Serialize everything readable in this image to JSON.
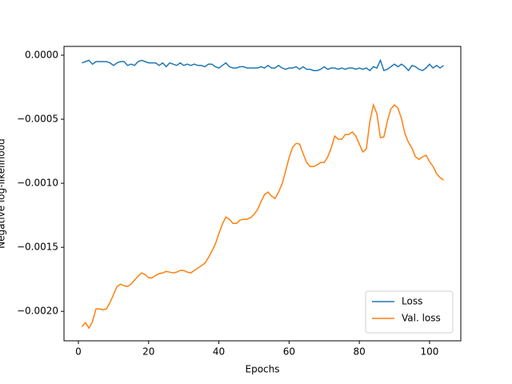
{
  "chart_data": {
    "type": "line",
    "x_label": "Epochs",
    "y_label": "Negative log-likelihood",
    "x": [
      1,
      2,
      3,
      4,
      5,
      6,
      7,
      8,
      9,
      10,
      11,
      12,
      13,
      14,
      15,
      16,
      17,
      18,
      19,
      20,
      21,
      22,
      23,
      24,
      25,
      26,
      27,
      28,
      29,
      30,
      31,
      32,
      33,
      34,
      35,
      36,
      37,
      38,
      39,
      40,
      41,
      42,
      43,
      44,
      45,
      46,
      47,
      48,
      49,
      50,
      51,
      52,
      53,
      54,
      55,
      56,
      57,
      58,
      59,
      60,
      61,
      62,
      63,
      64,
      65,
      66,
      67,
      68,
      69,
      70,
      71,
      72,
      73,
      74,
      75,
      76,
      77,
      78,
      79,
      80,
      81,
      82,
      83,
      84,
      85,
      86,
      87,
      88,
      89,
      90,
      91,
      92,
      93,
      94,
      95,
      96,
      97,
      98,
      99,
      100,
      101,
      102,
      103,
      104
    ],
    "series": [
      {
        "name": "Loss",
        "color": "#1f77b4",
        "values": [
          -6e-05,
          -5e-05,
          -4e-05,
          -7e-05,
          -5e-05,
          -5e-05,
          -5e-05,
          -5e-05,
          -6e-05,
          -8e-05,
          -6e-05,
          -5e-05,
          -5e-05,
          -8e-05,
          -7e-05,
          -8e-05,
          -5e-05,
          -4e-05,
          -5e-05,
          -6e-05,
          -6e-05,
          -6e-05,
          -8e-05,
          -6e-05,
          -9e-05,
          -6e-05,
          -7e-05,
          -8e-05,
          -6e-05,
          -8e-05,
          -7e-05,
          -8e-05,
          -7e-05,
          -8e-05,
          -8e-05,
          -9e-05,
          -7e-05,
          -7e-05,
          -9e-05,
          -0.0001,
          -8e-05,
          -6e-05,
          -9e-05,
          -0.0001,
          -0.0001,
          -9e-05,
          -9e-05,
          -0.0001,
          -0.0001,
          -0.0001,
          -0.0001,
          -9e-05,
          -0.0001,
          -8e-05,
          -0.0001,
          -0.0001,
          -8e-05,
          -0.0001,
          -0.00011,
          -0.0001,
          -0.0001,
          -9e-05,
          -0.00011,
          -9e-05,
          -0.00011,
          -0.00011,
          -0.00012,
          -0.00012,
          -0.00011,
          -9e-05,
          -0.00011,
          -0.0001,
          -0.0001,
          -0.00011,
          -0.0001,
          -0.00011,
          -0.0001,
          -0.0001,
          -0.00011,
          -0.0001,
          -0.00011,
          -0.0001,
          -0.00012,
          -9e-05,
          -0.0001,
          -4e-05,
          -0.00012,
          -0.00011,
          -9e-05,
          -7e-05,
          -9e-05,
          -7e-05,
          -9e-05,
          -0.00012,
          -8e-05,
          -9e-05,
          -0.00011,
          -0.00012,
          -0.0001,
          -7e-05,
          -0.0001,
          -8e-05,
          -0.0001,
          -8e-05
        ]
      },
      {
        "name": "Val. loss",
        "color": "#ff7f0e",
        "values": [
          -0.002119,
          -0.002088,
          -0.002131,
          -0.002081,
          -0.001981,
          -0.001981,
          -0.001988,
          -0.001981,
          -0.001931,
          -0.001869,
          -0.001806,
          -0.001788,
          -0.0018,
          -0.001806,
          -0.001788,
          -0.001756,
          -0.001725,
          -0.0017,
          -0.001713,
          -0.001738,
          -0.001738,
          -0.001719,
          -0.001706,
          -0.0017,
          -0.001688,
          -0.001694,
          -0.0017,
          -0.001694,
          -0.001681,
          -0.001681,
          -0.001694,
          -0.0017,
          -0.001681,
          -0.001663,
          -0.001644,
          -0.001625,
          -0.001581,
          -0.001531,
          -0.001475,
          -0.001394,
          -0.001319,
          -0.001263,
          -0.001281,
          -0.001313,
          -0.001313,
          -0.001288,
          -0.001281,
          -0.001281,
          -0.001269,
          -0.001244,
          -0.001206,
          -0.001144,
          -0.001088,
          -0.001069,
          -0.0011,
          -0.001119,
          -0.001069,
          -0.001006,
          -0.000906,
          -0.0008,
          -0.000719,
          -0.000688,
          -0.000694,
          -0.000769,
          -0.000838,
          -0.000869,
          -0.000869,
          -0.000856,
          -0.000838,
          -0.000838,
          -0.000794,
          -0.000725,
          -0.000631,
          -0.000656,
          -0.000656,
          -0.000619,
          -0.000619,
          -0.0006,
          -0.000631,
          -0.000694,
          -0.000756,
          -0.000731,
          -0.000519,
          -0.000388,
          -0.000456,
          -0.000644,
          -0.000638,
          -0.000513,
          -0.000419,
          -0.000388,
          -0.000413,
          -0.000494,
          -0.000613,
          -0.000681,
          -0.000725,
          -0.000794,
          -0.000813,
          -0.000794,
          -0.000781,
          -0.000831,
          -0.000869,
          -0.000925,
          -0.000956,
          -0.000975
        ]
      }
    ],
    "xlim": [
      -4.1,
      108.9
    ],
    "ylim": [
      -0.00223,
      6.87e-05
    ],
    "xticks": [
      0,
      20,
      40,
      60,
      80,
      100
    ],
    "yticks": [
      {
        "value": 0,
        "label": "0.0000"
      },
      {
        "value": -0.0005,
        "label": "−0.0005"
      },
      {
        "value": -0.001,
        "label": "−0.0010"
      },
      {
        "value": -0.0015,
        "label": "−0.0015"
      },
      {
        "value": -0.002,
        "label": "−0.0020"
      }
    ],
    "legend": "lower right"
  }
}
